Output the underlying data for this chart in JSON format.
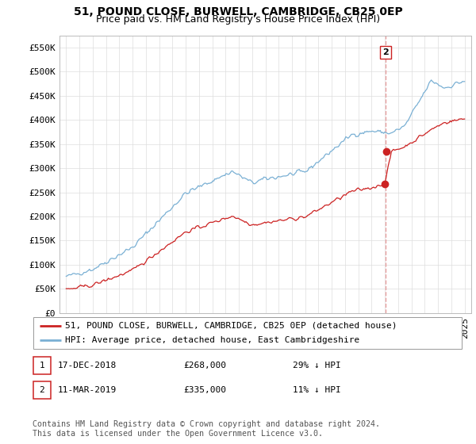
{
  "title": "51, POUND CLOSE, BURWELL, CAMBRIDGE, CB25 0EP",
  "subtitle": "Price paid vs. HM Land Registry's House Price Index (HPI)",
  "ylim": [
    0,
    575000
  ],
  "yticks": [
    0,
    50000,
    100000,
    150000,
    200000,
    250000,
    300000,
    350000,
    400000,
    450000,
    500000,
    550000
  ],
  "ytick_labels": [
    "£0",
    "£50K",
    "£100K",
    "£150K",
    "£200K",
    "£250K",
    "£300K",
    "£350K",
    "£400K",
    "£450K",
    "£500K",
    "£550K"
  ],
  "xmin": 1994.5,
  "xmax": 2025.5,
  "grid_color": "#dddddd",
  "hpi_color": "#7ab0d4",
  "price_color": "#cc2222",
  "dashed_color": "#e8a0a0",
  "marker_date_x": 2019.05,
  "marker1_price": 268000,
  "marker2_price": 335000,
  "legend_entries": [
    "51, POUND CLOSE, BURWELL, CAMBRIDGE, CB25 0EP (detached house)",
    "HPI: Average price, detached house, East Cambridgeshire"
  ],
  "table_rows": [
    {
      "num": "1",
      "date": "17-DEC-2018",
      "price": "£268,000",
      "note": "29% ↓ HPI"
    },
    {
      "num": "2",
      "date": "11-MAR-2019",
      "price": "£335,000",
      "note": "11% ↓ HPI"
    }
  ],
  "footnote": "Contains HM Land Registry data © Crown copyright and database right 2024.\nThis data is licensed under the Open Government Licence v3.0.",
  "title_fontsize": 10,
  "subtitle_fontsize": 9,
  "tick_fontsize": 8,
  "legend_fontsize": 8,
  "table_fontsize": 8
}
